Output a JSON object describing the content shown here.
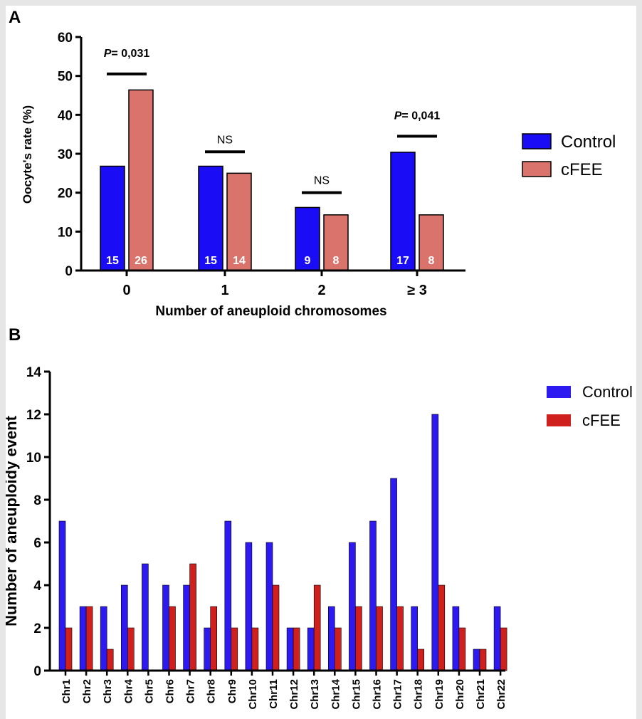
{
  "colors": {
    "control_a": "#1a0cf5",
    "cfee_a": "#d9736c",
    "control_b": "#2d1af0",
    "cfee_b": "#d0201e",
    "axis": "#000000",
    "count_label": "#ffffff"
  },
  "chart_data": [
    {
      "panel": "A",
      "type": "bar",
      "xlabel": "Number of aneuploid chromosomes",
      "ylabel": "Oocyte's rate (%)",
      "ylim": [
        0,
        60
      ],
      "yticks": [
        "0",
        "10",
        "20",
        "30",
        "40",
        "50",
        "60"
      ],
      "categories": [
        "0",
        "1",
        "2",
        "≥ 3"
      ],
      "series": [
        {
          "name": "Control",
          "values": [
            26.8,
            26.8,
            16.2,
            30.4
          ],
          "counts": [
            "15",
            "15",
            "9",
            "17"
          ]
        },
        {
          "name": "cFEE",
          "values": [
            46.4,
            25.0,
            14.3,
            14.3
          ],
          "counts": [
            "26",
            "14",
            "8",
            "8"
          ]
        }
      ],
      "annotations": [
        {
          "text": "P= 0,031",
          "category": 0,
          "level": 50.5
        },
        {
          "text": "NS",
          "category": 1,
          "level": 30.5
        },
        {
          "text": "NS",
          "category": 2,
          "level": 20.0
        },
        {
          "text": "P= 0,041",
          "category": 3,
          "level": 34.5
        }
      ],
      "legend": [
        "Control",
        "cFEE"
      ],
      "legend_position": "right",
      "grid": false
    },
    {
      "panel": "B",
      "type": "bar",
      "xlabel": "",
      "ylabel": "Number of  aneuploidy event",
      "ylim": [
        0,
        14
      ],
      "yticks": [
        "0",
        "2",
        "4",
        "6",
        "8",
        "10",
        "12",
        "14"
      ],
      "categories": [
        "Chr1",
        "Chr2",
        "Chr3",
        "Chr4",
        "Chr5",
        "Chr6",
        "Chr7",
        "Chr8",
        "Chr9",
        "Chr10",
        "Chr11",
        "Chr12",
        "Chr13",
        "Chr14",
        "Chr15",
        "Chr16",
        "Chr17",
        "Chr18",
        "Chr19",
        "Chr20",
        "Chr21",
        "Chr22"
      ],
      "series": [
        {
          "name": "Control",
          "values": [
            7,
            3,
            3,
            4,
            5,
            4,
            4,
            2,
            7,
            6,
            6,
            2,
            2,
            3,
            6,
            7,
            9,
            3,
            12,
            3,
            1,
            3
          ]
        },
        {
          "name": "cFEE",
          "values": [
            2,
            3,
            1,
            2,
            0,
            3,
            5,
            3,
            2,
            2,
            4,
            2,
            4,
            2,
            3,
            3,
            3,
            1,
            4,
            2,
            1,
            2
          ]
        }
      ],
      "legend": [
        "Control",
        "cFEE"
      ],
      "legend_position": "top-right",
      "grid": false
    }
  ],
  "panel_labels": [
    "A",
    "B"
  ]
}
